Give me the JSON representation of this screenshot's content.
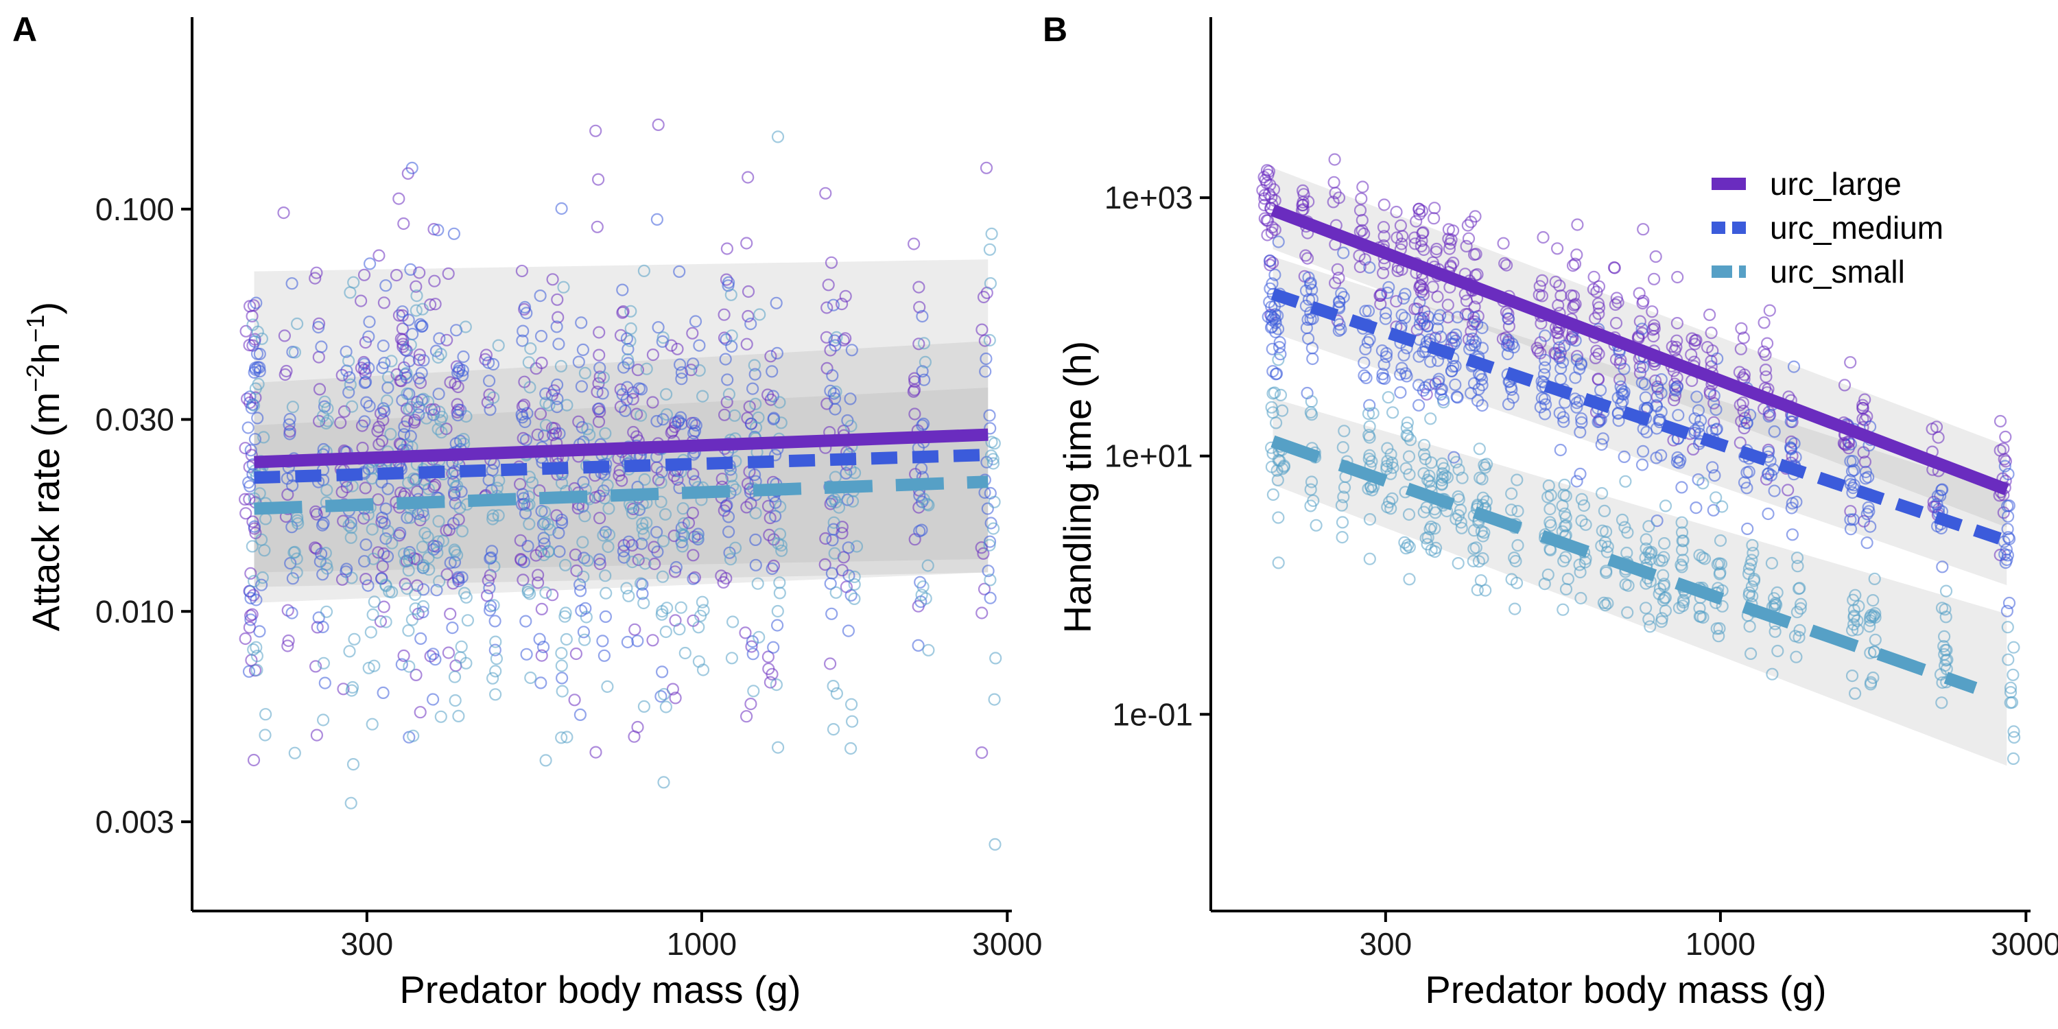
{
  "chart_data": [
    {
      "panel_label": "A",
      "type": "scatter",
      "xlabel": "Predator body mass (g)",
      "ylabel": "Attack rate (m⁻²h⁻¹)",
      "x_scale": "log",
      "y_scale": "log",
      "xlim": [
        160,
        3050
      ],
      "ylim": [
        0.0018,
        0.3
      ],
      "xticks": [
        300,
        1000,
        3000
      ],
      "xtick_labels": [
        "300",
        "1000",
        "3000"
      ],
      "yticks": [
        0.003,
        0.01,
        0.03,
        0.1
      ],
      "ytick_labels": [
        "0.003",
        "0.010",
        "0.030",
        "0.100"
      ],
      "grid": false,
      "predator_masses": [
        198,
        203,
        228,
        255,
        280,
        300,
        320,
        342,
        350,
        365,
        385,
        410,
        420,
        470,
        530,
        565,
        600,
        650,
        700,
        760,
        800,
        860,
        920,
        980,
        1100,
        1200,
        1300,
        1600,
        1700,
        2200,
        2800
      ],
      "series": [
        {
          "name": "urc_large",
          "color": "#6a2cbf",
          "dash": "solid",
          "fit": {
            "x": [
              200,
              2800
            ],
            "y": [
              0.0235,
              0.0275
            ]
          },
          "ci": {
            "x": [
              200,
              2800
            ],
            "lower": [
              0.0105,
              0.0125
            ],
            "upper": [
              0.07,
              0.075
            ]
          },
          "points_center": 0.025,
          "points_spread": 0.65
        },
        {
          "name": "urc_medium",
          "color": "#3b5bdb",
          "dash": "dash",
          "fit": {
            "x": [
              200,
              2800
            ],
            "y": [
              0.0215,
              0.0245
            ]
          },
          "ci": {
            "x": [
              200,
              2800
            ],
            "lower": [
              0.0125,
              0.0135
            ],
            "upper": [
              0.037,
              0.047
            ]
          },
          "points_center": 0.022,
          "points_spread": 0.55
        },
        {
          "name": "urc_small",
          "color": "#56a0c6",
          "dash": "longdash",
          "fit": {
            "x": [
              200,
              2800
            ],
            "y": [
              0.018,
              0.021
            ]
          },
          "ci": {
            "x": [
              200,
              2800
            ],
            "lower": [
              0.0115,
              0.0125
            ],
            "upper": [
              0.029,
              0.036
            ]
          },
          "points_center": 0.017,
          "points_spread": 0.6
        }
      ]
    },
    {
      "panel_label": "B",
      "type": "scatter",
      "xlabel": "Predator body mass (g)",
      "ylabel": "Handling time (h)",
      "x_scale": "log",
      "y_scale": "log",
      "xlim": [
        160,
        3050
      ],
      "ylim": [
        0.003,
        25000
      ],
      "xticks": [
        300,
        1000,
        3000
      ],
      "xtick_labels": [
        "300",
        "1000",
        "3000"
      ],
      "yticks": [
        0.1,
        10,
        1000
      ],
      "ytick_labels": [
        "1e-01",
        "1e+01",
        "1e+03"
      ],
      "grid": false,
      "legend_position": "top-right",
      "predator_masses": [
        198,
        203,
        228,
        255,
        280,
        300,
        320,
        342,
        350,
        365,
        385,
        410,
        420,
        470,
        530,
        565,
        600,
        650,
        700,
        760,
        800,
        860,
        920,
        980,
        1100,
        1200,
        1300,
        1600,
        1700,
        2200,
        2800
      ],
      "series": [
        {
          "name": "urc_large",
          "color": "#6a2cbf",
          "dash": "solid",
          "fit": {
            "x": [
              200,
              2800
            ],
            "y": [
              800,
              5.5
            ]
          },
          "ci": {
            "x": [
              200,
              2800
            ],
            "lower": [
              400,
              2.8
            ],
            "upper": [
              1700,
              12
            ]
          },
          "points_center_start": 900,
          "points_center_end": 6,
          "points_spread": 0.6
        },
        {
          "name": "urc_medium",
          "color": "#3b5bdb",
          "dash": "dash",
          "fit": {
            "x": [
              200,
              2800
            ],
            "y": [
              180,
              2.2
            ]
          },
          "ci": {
            "x": [
              200,
              2800
            ],
            "lower": [
              90,
              1.0
            ],
            "upper": [
              350,
              5.2
            ]
          },
          "points_center_start": 150,
          "points_center_end": 2.5,
          "points_spread": 0.55
        },
        {
          "name": "urc_small",
          "color": "#56a0c6",
          "dash": "longdash",
          "fit": {
            "x": [
              200,
              2500
            ],
            "y": [
              13,
              0.16
            ]
          },
          "ci": {
            "x": [
              200,
              2800
            ],
            "lower": [
              6,
              0.04
            ],
            "upper": [
              28,
              0.6
            ]
          },
          "points_center_start": 12,
          "points_center_end": 0.2,
          "points_spread": 0.6
        }
      ]
    }
  ]
}
